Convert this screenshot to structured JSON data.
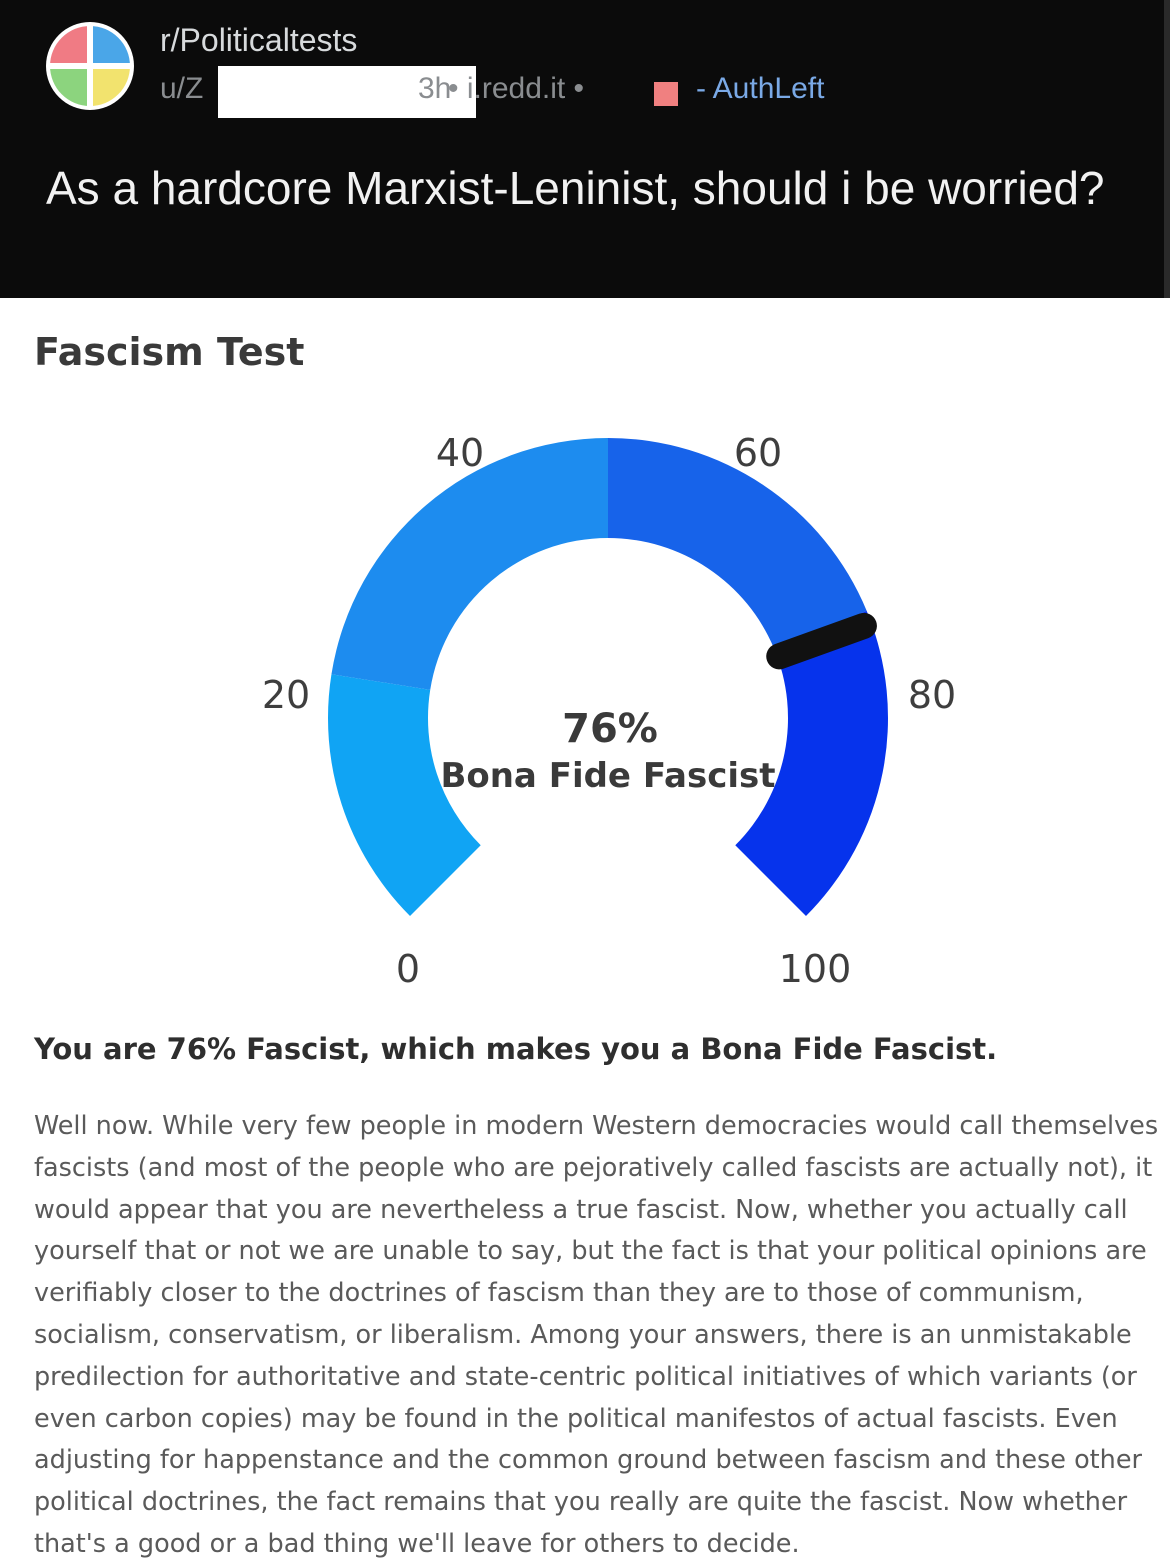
{
  "post": {
    "subreddit": "r/Politicaltests",
    "user_prefix": "u/Z",
    "time_ago": "3h",
    "domain": "• i.redd.it •",
    "flair": "- AuthLeft",
    "title": "As a hardcore Marxist-Leninist, should i be worried?"
  },
  "colors": {
    "flair": "#f08080",
    "gauge_segments": [
      "#10a4f4",
      "#1d8cef",
      "#1763ea",
      "#0633ec"
    ],
    "needle": "#111111"
  },
  "quiz": {
    "title": "Fascism Test",
    "result_heading": "You are 76% Fascist, which makes you a Bona Fide Fascist.",
    "result_body_lines": [
      "Well now. While very few people in modern Western democracies would call themselves",
      "fascists (and most of the people who are pejoratively called fascists are actually not), it",
      "would appear that you are nevertheless a true fascist. Now, whether you actually call",
      "yourself that or not we are unable to say, but the fact is that your political opinions are",
      "verifiably closer to the doctrines of fascism than they are to those of communism,",
      "socialism, conservatism, or liberalism. Among your answers, there is an unmistakable",
      "predilection for authoritative and state-centric political initiatives of which variants (or",
      "even carbon copies) may be found in the political manifestos of actual fascists. Even",
      "adjusting for happenstance and the common ground between fascism and these other",
      "political doctrines, the fact remains that you really are quite the fascist. Now whether",
      "that's a good or a bad thing we'll leave for others to decide."
    ]
  },
  "gauge": {
    "value": 76,
    "min": 0,
    "max": 100,
    "value_label": "76%",
    "category_label": "Bona Fide Fascist",
    "ticks": [
      "0",
      "20",
      "40",
      "60",
      "80",
      "100"
    ]
  }
}
